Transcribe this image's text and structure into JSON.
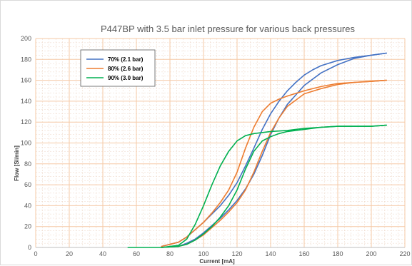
{
  "chart_data": {
    "type": "line",
    "title": "P447BP with 3.5 bar inlet pressure for various back pressures",
    "xlabel": "Current [mA]",
    "ylabel": "Flow [Sl/min]",
    "xlim": [
      0,
      220
    ],
    "ylim": [
      0,
      200
    ],
    "x_ticks": [
      "0",
      "20",
      "40",
      "60",
      "80",
      "100",
      "120",
      "140",
      "160",
      "180",
      "200",
      "220"
    ],
    "y_ticks": [
      "0",
      "20",
      "40",
      "60",
      "80",
      "100",
      "120",
      "140",
      "160",
      "180",
      "200"
    ],
    "grid": true,
    "legend_position": "top-left",
    "series": [
      {
        "name": "70% (2.1 bar)",
        "color": "#4472c4",
        "branches": [
          {
            "x": [
              75,
              85,
              90,
              95,
              100,
              105,
              110,
              115,
              120,
              125,
              130,
              135,
              140,
              145,
              150,
              155,
              160,
              165,
              170,
              180,
              190,
              200,
              209
            ],
            "y": [
              1,
              5,
              10,
              17,
              24,
              32,
              40,
              50,
              62,
              78,
              95,
              113,
              128,
              140,
              150,
              158,
              165,
              170,
              174,
              179,
              182,
              184,
              186
            ]
          },
          {
            "x": [
              209,
              200,
              190,
              180,
              170,
              160,
              155,
              150,
              145,
              140,
              135,
              130,
              125,
              120,
              115,
              110,
              105,
              100,
              95,
              90,
              85,
              75
            ],
            "y": [
              186,
              184,
              181,
              175,
              167,
              155,
              146,
              137,
              124,
              108,
              88,
              70,
              56,
              45,
              36,
              28,
              21,
              14,
              8,
              4,
              1,
              0
            ]
          }
        ]
      },
      {
        "name": "80% (2.6 bar)",
        "color": "#ed7d31",
        "branches": [
          {
            "x": [
              75,
              85,
              90,
              95,
              100,
              105,
              110,
              115,
              120,
              125,
              130,
              135,
              140,
              145,
              150,
              160,
              170,
              180,
              190,
              200,
              209
            ],
            "y": [
              1,
              5,
              10,
              17,
              24,
              33,
              43,
              55,
              72,
              95,
              115,
              130,
              138,
              142,
              145,
              150,
              154,
              157,
              158,
              159,
              160
            ]
          },
          {
            "x": [
              209,
              200,
              190,
              180,
              170,
              160,
              155,
              150,
              145,
              140,
              135,
              130,
              125,
              120,
              115,
              110,
              105,
              100,
              95,
              90,
              85,
              75
            ],
            "y": [
              160,
              159,
              158,
              156,
              152,
              147,
              141,
              135,
              124,
              110,
              92,
              72,
              55,
              43,
              34,
              26,
              19,
              12,
              7,
              3,
              1,
              0
            ]
          }
        ]
      },
      {
        "name": "90% (3.0 bar)",
        "color": "#00b050",
        "branches": [
          {
            "x": [
              55,
              65,
              75,
              85,
              90,
              95,
              100,
              105,
              110,
              115,
              120,
              125,
              130,
              140,
              150,
              160,
              170,
              180,
              190,
              200,
              209
            ],
            "y": [
              0,
              0,
              0,
              2,
              8,
              22,
              40,
              60,
              78,
              92,
              102,
              107,
              109,
              111,
              112,
              114,
              115,
              116,
              116,
              116,
              117
            ]
          },
          {
            "x": [
              209,
              200,
              190,
              180,
              170,
              160,
              150,
              145,
              140,
              135,
              130,
              125,
              120,
              115,
              110,
              105,
              100,
              95,
              90,
              85,
              75
            ],
            "y": [
              117,
              116,
              116,
              116,
              115,
              113,
              111,
              109,
              106,
              102,
              92,
              75,
              55,
              40,
              29,
              20,
              13,
              7,
              3,
              1,
              0
            ]
          }
        ]
      }
    ]
  }
}
